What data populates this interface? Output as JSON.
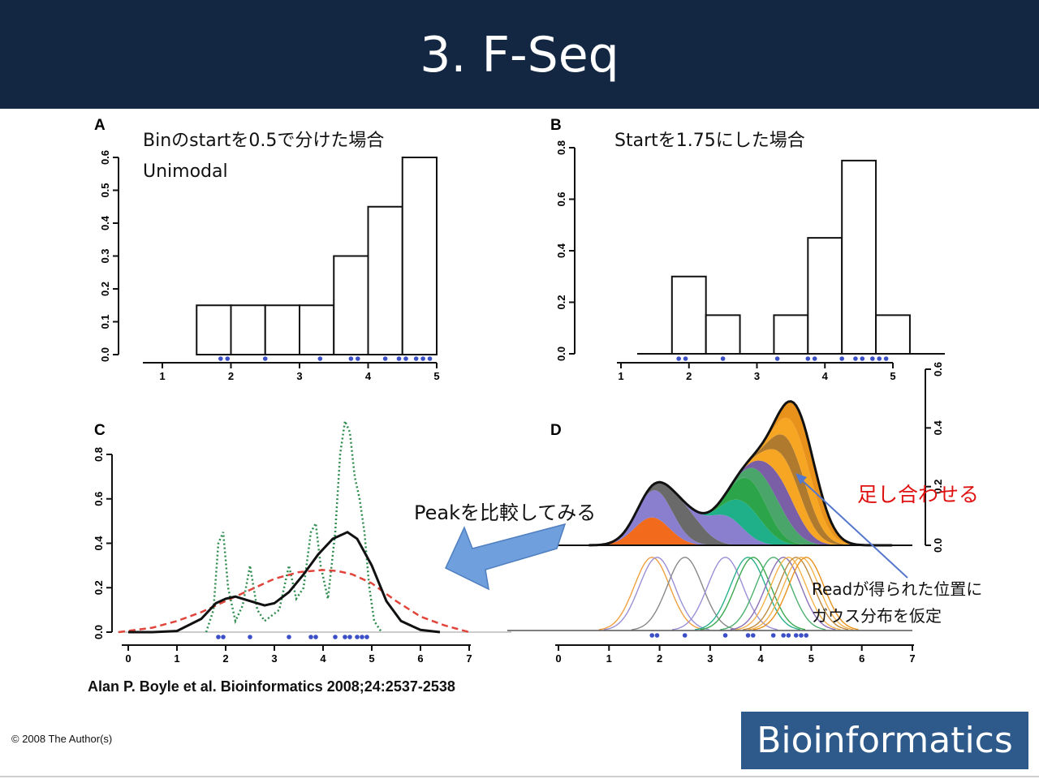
{
  "slide": {
    "title": "3. F-Seq",
    "citation": "Alan P. Boyle et al. Bioinformatics 2008;24:2537-2538",
    "copyright": "© 2008 The Author(s)",
    "journal_logo": "Bioinformatics"
  },
  "annotations": {
    "a_text1": "Binのstartを0.5で分けた場合",
    "a_text2": "Unimodal",
    "b_text": "Startを1.75にした場合",
    "compare_text": "Peakを比較してみる",
    "sum_text": "足し合わせる",
    "gauss_text1": "Readが得られた位置に",
    "gauss_text2": "ガウス分布を仮定"
  },
  "colors": {
    "header_bg": "#132743",
    "logo_bg": "#2d5a8a",
    "read_dot": "#3b4fc6",
    "kde_dashed": "#e0443a",
    "kde_dotted": "#2e8b4e",
    "sum_label": "#e01010",
    "arrow_fill": "#6f9fdc",
    "pointer_line": "#5577cc"
  },
  "chart_data": [
    {
      "panel": "A",
      "type": "bar",
      "bins": [
        [
          1.5,
          2.0
        ],
        [
          2.0,
          2.5
        ],
        [
          2.5,
          3.0
        ],
        [
          3.0,
          3.5
        ],
        [
          3.5,
          4.0
        ],
        [
          4.0,
          4.5
        ],
        [
          4.5,
          5.0
        ]
      ],
      "values": [
        0.15,
        0.15,
        0.15,
        0.15,
        0.3,
        0.45,
        0.6
      ],
      "reads": [
        1.85,
        1.95,
        2.5,
        3.3,
        3.75,
        3.85,
        4.25,
        4.45,
        4.55,
        4.7,
        4.8,
        4.9
      ],
      "xlim": [
        1,
        5
      ],
      "xticks": [
        1,
        2,
        3,
        4,
        5
      ],
      "ylim": [
        0,
        0.6
      ],
      "yticks": [
        "0.0",
        "0.1",
        "0.2",
        "0.3",
        "0.4",
        "0.5",
        "0.6"
      ]
    },
    {
      "panel": "B",
      "type": "bar",
      "bins": [
        [
          1.75,
          2.25
        ],
        [
          2.25,
          2.75
        ],
        [
          3.25,
          3.75
        ],
        [
          3.75,
          4.25
        ],
        [
          4.25,
          4.75
        ],
        [
          4.75,
          5.25
        ]
      ],
      "values": [
        0.3,
        0.15,
        0.15,
        0.45,
        0.75,
        0.15
      ],
      "reads": [
        1.85,
        1.95,
        2.5,
        3.3,
        3.75,
        3.85,
        4.25,
        4.45,
        4.55,
        4.7,
        4.8,
        4.9
      ],
      "xlim": [
        1,
        5
      ],
      "xticks": [
        1,
        2,
        3,
        4,
        5
      ],
      "ylim": [
        0,
        0.8
      ],
      "yticks": [
        "0.0",
        "0.2",
        "0.4",
        "0.6",
        "0.8"
      ]
    },
    {
      "panel": "C",
      "type": "line",
      "series": [
        {
          "style": "solid-black",
          "x": [
            0,
            0.5,
            1.0,
            1.5,
            1.8,
            2.0,
            2.2,
            2.5,
            2.8,
            3.0,
            3.3,
            3.6,
            3.9,
            4.2,
            4.5,
            4.7,
            5.0,
            5.3,
            5.6,
            6.0,
            6.4
          ],
          "y": [
            0,
            0,
            0.005,
            0.06,
            0.13,
            0.15,
            0.16,
            0.14,
            0.12,
            0.13,
            0.18,
            0.26,
            0.35,
            0.42,
            0.45,
            0.42,
            0.3,
            0.14,
            0.05,
            0.01,
            0
          ]
        },
        {
          "style": "dashed-red",
          "x": [
            -0.2,
            0.5,
            1.0,
            1.5,
            2.0,
            2.5,
            3.0,
            3.5,
            4.0,
            4.3,
            4.6,
            5.0,
            5.5,
            6.0,
            6.5,
            7.0
          ],
          "y": [
            0,
            0.02,
            0.05,
            0.09,
            0.14,
            0.19,
            0.24,
            0.27,
            0.28,
            0.275,
            0.26,
            0.22,
            0.14,
            0.07,
            0.03,
            0.0
          ]
        },
        {
          "style": "dotted-green",
          "x": [
            1.6,
            1.75,
            1.85,
            1.95,
            2.05,
            2.2,
            2.35,
            2.5,
            2.65,
            2.8,
            3.1,
            3.3,
            3.45,
            3.6,
            3.75,
            3.85,
            3.95,
            4.1,
            4.25,
            4.35,
            4.45,
            4.55,
            4.65,
            4.75,
            4.85,
            4.95,
            5.05,
            5.2
          ],
          "y": [
            0,
            0.1,
            0.4,
            0.45,
            0.2,
            0.05,
            0.12,
            0.3,
            0.1,
            0.05,
            0.1,
            0.3,
            0.15,
            0.2,
            0.45,
            0.49,
            0.3,
            0.15,
            0.45,
            0.8,
            0.95,
            0.9,
            0.7,
            0.6,
            0.45,
            0.2,
            0.05,
            0
          ]
        }
      ],
      "reads": [
        1.85,
        1.95,
        2.5,
        3.3,
        3.75,
        3.85,
        4.25,
        4.45,
        4.55,
        4.7,
        4.8,
        4.9
      ],
      "xlim": [
        0,
        7
      ],
      "xticks": [
        0,
        1,
        2,
        3,
        4,
        5,
        6,
        7
      ],
      "ylim": [
        0,
        0.8
      ],
      "yticks": [
        "0.0",
        "0.2",
        "0.4",
        "0.6",
        "0.8"
      ]
    },
    {
      "panel": "D",
      "type": "area",
      "stacked": true,
      "reads": [
        1.85,
        1.95,
        2.5,
        3.3,
        3.75,
        3.85,
        4.25,
        4.45,
        4.55,
        4.7,
        4.8,
        4.9
      ],
      "bandwidth": 0.35,
      "layer_colors": [
        "#f26a1b",
        "#8a7fcf",
        "#6a6a6a",
        "#8a7fcf",
        "#1fb089",
        "#2ca449",
        "#4aa56a",
        "#7a5fa6",
        "#f6a623",
        "#b07a2e",
        "#f6a623",
        "#e8921c"
      ],
      "kernel_colors": [
        "#f0a040",
        "#9b8fd6",
        "#888888",
        "#9b8fd6",
        "#2ab08a",
        "#3aa84f",
        "#4caf6e",
        "#8a6fb6",
        "#f5b24a",
        "#c08a3e",
        "#f5b24a",
        "#e8921c"
      ],
      "xlim": [
        0,
        7
      ],
      "xticks": [
        0,
        1,
        2,
        3,
        4,
        5,
        6,
        7
      ],
      "ylim": [
        0,
        0.6
      ],
      "yticks": [
        "0.0",
        "0.2",
        "0.4",
        "0.6"
      ]
    }
  ]
}
